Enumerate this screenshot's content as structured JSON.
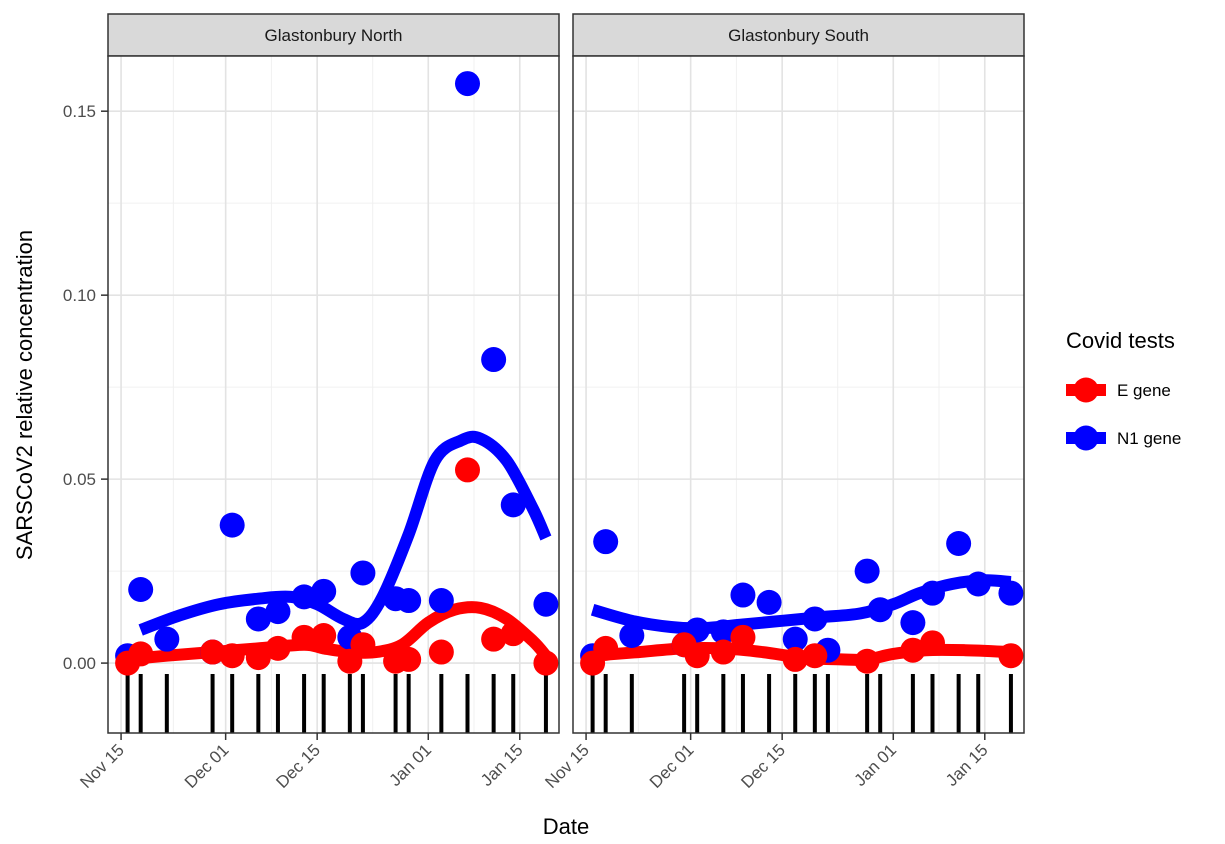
{
  "chart_data": {
    "type": "scatter",
    "ylabel": "SARSCoV2 relative concentration",
    "xlabel": "Date",
    "ylim": [
      -0.019,
      0.165
    ],
    "yticks": [
      0.0,
      0.05,
      0.1,
      0.15
    ],
    "ytick_labels": [
      "0.00",
      "0.05",
      "0.10",
      "0.15"
    ],
    "x_domain": [
      "2020-11-13",
      "2021-01-21"
    ],
    "xticks": [
      "2020-11-15",
      "2020-12-01",
      "2020-12-15",
      "2021-01-01",
      "2021-01-15"
    ],
    "xtick_labels": [
      "Nov 15",
      "Dec 01",
      "Dec 15",
      "Jan 01",
      "Jan 15"
    ],
    "grid": true,
    "legend": {
      "title": "Covid tests",
      "position": "right",
      "entries": [
        {
          "label": "E gene",
          "color": "#ff0000"
        },
        {
          "label": "N1 gene",
          "color": "#0000ff"
        }
      ]
    },
    "panels": [
      {
        "title": "Glastonbury North",
        "rug_dates": [
          "2020-11-16",
          "2020-11-18",
          "2020-11-22",
          "2020-11-29",
          "2020-12-02",
          "2020-12-06",
          "2020-12-09",
          "2020-12-13",
          "2020-12-16",
          "2020-12-20",
          "2020-12-22",
          "2020-12-27",
          "2020-12-29",
          "2021-01-03",
          "2021-01-07",
          "2021-01-11",
          "2021-01-14",
          "2021-01-19"
        ],
        "series": [
          {
            "name": "E gene",
            "color": "#ff0000",
            "points": [
              {
                "x": "2020-11-16",
                "y": 0.0
              },
              {
                "x": "2020-11-18",
                "y": 0.0025
              },
              {
                "x": "2020-11-29",
                "y": 0.003
              },
              {
                "x": "2020-12-02",
                "y": 0.002
              },
              {
                "x": "2020-12-06",
                "y": 0.0015
              },
              {
                "x": "2020-12-09",
                "y": 0.004
              },
              {
                "x": "2020-12-13",
                "y": 0.007
              },
              {
                "x": "2020-12-16",
                "y": 0.0075
              },
              {
                "x": "2020-12-20",
                "y": 0.0005
              },
              {
                "x": "2020-12-22",
                "y": 0.005
              },
              {
                "x": "2020-12-27",
                "y": 0.0005
              },
              {
                "x": "2020-12-29",
                "y": 0.001
              },
              {
                "x": "2021-01-03",
                "y": 0.003
              },
              {
                "x": "2021-01-07",
                "y": 0.0525
              },
              {
                "x": "2021-01-11",
                "y": 0.0065
              },
              {
                "x": "2021-01-14",
                "y": 0.008
              },
              {
                "x": "2021-01-19",
                "y": 0.0
              }
            ],
            "smooth": [
              {
                "x": "2020-11-16",
                "y": 0.001
              },
              {
                "x": "2020-11-22",
                "y": 0.002
              },
              {
                "x": "2020-11-29",
                "y": 0.003
              },
              {
                "x": "2020-12-06",
                "y": 0.004
              },
              {
                "x": "2020-12-13",
                "y": 0.005
              },
              {
                "x": "2020-12-16",
                "y": 0.004
              },
              {
                "x": "2020-12-20",
                "y": 0.003
              },
              {
                "x": "2020-12-24",
                "y": 0.003
              },
              {
                "x": "2020-12-28",
                "y": 0.005
              },
              {
                "x": "2021-01-01",
                "y": 0.011
              },
              {
                "x": "2021-01-05",
                "y": 0.0145
              },
              {
                "x": "2021-01-09",
                "y": 0.015
              },
              {
                "x": "2021-01-13",
                "y": 0.012
              },
              {
                "x": "2021-01-17",
                "y": 0.006
              },
              {
                "x": "2021-01-19",
                "y": 0.002
              }
            ]
          },
          {
            "name": "N1 gene",
            "color": "#0000ff",
            "points": [
              {
                "x": "2020-11-16",
                "y": 0.002
              },
              {
                "x": "2020-11-18",
                "y": 0.02
              },
              {
                "x": "2020-11-22",
                "y": 0.0065
              },
              {
                "x": "2020-11-29",
                "y": 0.003
              },
              {
                "x": "2020-12-02",
                "y": 0.0375
              },
              {
                "x": "2020-12-06",
                "y": 0.012
              },
              {
                "x": "2020-12-09",
                "y": 0.014
              },
              {
                "x": "2020-12-13",
                "y": 0.018
              },
              {
                "x": "2020-12-16",
                "y": 0.0195
              },
              {
                "x": "2020-12-20",
                "y": 0.007
              },
              {
                "x": "2020-12-22",
                "y": 0.0245
              },
              {
                "x": "2020-12-27",
                "y": 0.0175
              },
              {
                "x": "2020-12-29",
                "y": 0.017
              },
              {
                "x": "2021-01-03",
                "y": 0.017
              },
              {
                "x": "2021-01-07",
                "y": 0.1575
              },
              {
                "x": "2021-01-11",
                "y": 0.0825
              },
              {
                "x": "2021-01-14",
                "y": 0.043
              },
              {
                "x": "2021-01-19",
                "y": 0.016
              }
            ],
            "smooth": [
              {
                "x": "2020-11-18",
                "y": 0.009
              },
              {
                "x": "2020-11-24",
                "y": 0.013
              },
              {
                "x": "2020-11-30",
                "y": 0.016
              },
              {
                "x": "2020-12-06",
                "y": 0.0175
              },
              {
                "x": "2020-12-11",
                "y": 0.018
              },
              {
                "x": "2020-12-15",
                "y": 0.016
              },
              {
                "x": "2020-12-19",
                "y": 0.012
              },
              {
                "x": "2020-12-22",
                "y": 0.011
              },
              {
                "x": "2020-12-25",
                "y": 0.018
              },
              {
                "x": "2020-12-29",
                "y": 0.035
              },
              {
                "x": "2021-01-02",
                "y": 0.055
              },
              {
                "x": "2021-01-06",
                "y": 0.0605
              },
              {
                "x": "2021-01-09",
                "y": 0.061
              },
              {
                "x": "2021-01-13",
                "y": 0.055
              },
              {
                "x": "2021-01-17",
                "y": 0.042
              },
              {
                "x": "2021-01-19",
                "y": 0.034
              }
            ]
          }
        ]
      },
      {
        "title": "Glastonbury South",
        "rug_dates": [
          "2020-11-16",
          "2020-11-18",
          "2020-11-22",
          "2020-11-30",
          "2020-12-02",
          "2020-12-06",
          "2020-12-09",
          "2020-12-13",
          "2020-12-17",
          "2020-12-20",
          "2020-12-22",
          "2020-12-28",
          "2020-12-30",
          "2021-01-04",
          "2021-01-07",
          "2021-01-11",
          "2021-01-14",
          "2021-01-19"
        ],
        "series": [
          {
            "name": "E gene",
            "color": "#ff0000",
            "points": [
              {
                "x": "2020-11-16",
                "y": 0.0
              },
              {
                "x": "2020-11-18",
                "y": 0.004
              },
              {
                "x": "2020-11-30",
                "y": 0.005
              },
              {
                "x": "2020-12-02",
                "y": 0.002
              },
              {
                "x": "2020-12-06",
                "y": 0.003
              },
              {
                "x": "2020-12-09",
                "y": 0.007
              },
              {
                "x": "2020-12-17",
                "y": 0.001
              },
              {
                "x": "2020-12-20",
                "y": 0.002
              },
              {
                "x": "2020-12-28",
                "y": 0.0005
              },
              {
                "x": "2021-01-04",
                "y": 0.0035
              },
              {
                "x": "2021-01-07",
                "y": 0.0055
              },
              {
                "x": "2021-01-19",
                "y": 0.002
              }
            ],
            "smooth": [
              {
                "x": "2020-11-16",
                "y": 0.002
              },
              {
                "x": "2020-11-23",
                "y": 0.003
              },
              {
                "x": "2020-11-30",
                "y": 0.004
              },
              {
                "x": "2020-12-06",
                "y": 0.004
              },
              {
                "x": "2020-12-12",
                "y": 0.003
              },
              {
                "x": "2020-12-18",
                "y": 0.0015
              },
              {
                "x": "2020-12-24",
                "y": 0.001
              },
              {
                "x": "2020-12-28",
                "y": 0.001
              },
              {
                "x": "2021-01-01",
                "y": 0.0025
              },
              {
                "x": "2021-01-06",
                "y": 0.0035
              },
              {
                "x": "2021-01-12",
                "y": 0.0035
              },
              {
                "x": "2021-01-19",
                "y": 0.003
              }
            ]
          },
          {
            "name": "N1 gene",
            "color": "#0000ff",
            "points": [
              {
                "x": "2020-11-16",
                "y": 0.002
              },
              {
                "x": "2020-11-18",
                "y": 0.033
              },
              {
                "x": "2020-11-22",
                "y": 0.0075
              },
              {
                "x": "2020-11-30",
                "y": 0.005
              },
              {
                "x": "2020-12-02",
                "y": 0.009
              },
              {
                "x": "2020-12-06",
                "y": 0.0085
              },
              {
                "x": "2020-12-09",
                "y": 0.0185
              },
              {
                "x": "2020-12-13",
                "y": 0.0165
              },
              {
                "x": "2020-12-17",
                "y": 0.0065
              },
              {
                "x": "2020-12-20",
                "y": 0.012
              },
              {
                "x": "2020-12-22",
                "y": 0.0035
              },
              {
                "x": "2020-12-28",
                "y": 0.025
              },
              {
                "x": "2020-12-30",
                "y": 0.0145
              },
              {
                "x": "2021-01-04",
                "y": 0.011
              },
              {
                "x": "2021-01-07",
                "y": 0.019
              },
              {
                "x": "2021-01-11",
                "y": 0.0325
              },
              {
                "x": "2021-01-14",
                "y": 0.0215
              },
              {
                "x": "2021-01-19",
                "y": 0.019
              }
            ],
            "smooth": [
              {
                "x": "2020-11-16",
                "y": 0.0145
              },
              {
                "x": "2020-11-22",
                "y": 0.0115
              },
              {
                "x": "2020-11-28",
                "y": 0.0098
              },
              {
                "x": "2020-12-03",
                "y": 0.0095
              },
              {
                "x": "2020-12-09",
                "y": 0.0105
              },
              {
                "x": "2020-12-15",
                "y": 0.0115
              },
              {
                "x": "2020-12-21",
                "y": 0.0125
              },
              {
                "x": "2020-12-27",
                "y": 0.0135
              },
              {
                "x": "2021-01-01",
                "y": 0.016
              },
              {
                "x": "2021-01-05",
                "y": 0.019
              },
              {
                "x": "2021-01-10",
                "y": 0.0215
              },
              {
                "x": "2021-01-15",
                "y": 0.0225
              },
              {
                "x": "2021-01-19",
                "y": 0.022
              }
            ]
          }
        ]
      }
    ]
  }
}
